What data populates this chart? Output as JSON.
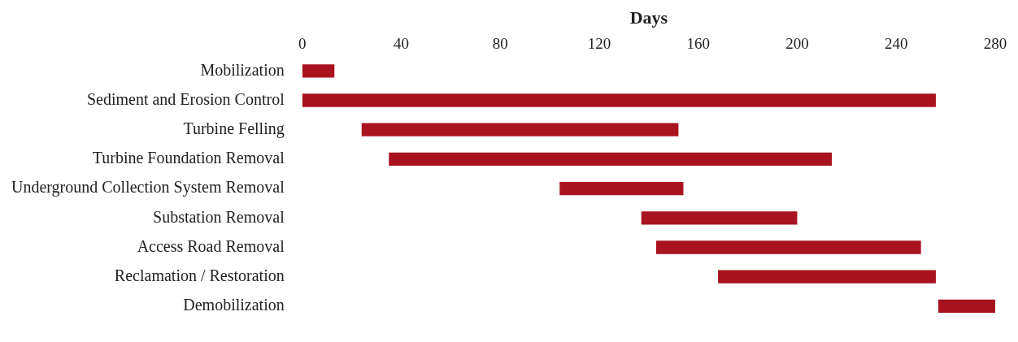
{
  "chart_data": {
    "type": "bar",
    "orientation": "horizontal",
    "xlabel": "Days",
    "categories": [
      "Mobilization",
      "Sediment and Erosion Control",
      "Turbine Felling",
      "Turbine Foundation Removal",
      "Underground Collection System Removal",
      "Substation Removal",
      "Access Road Removal",
      "Reclamation / Restoration",
      "Demobilization"
    ],
    "base": [
      0,
      0,
      24,
      35,
      104,
      137,
      143,
      168,
      257
    ],
    "values": [
      13,
      256,
      128,
      179,
      50,
      63,
      107,
      88,
      23
    ],
    "color": "#a8131f",
    "xlim": [
      0,
      280
    ],
    "xticks": [
      0,
      40,
      80,
      120,
      160,
      200,
      240,
      280
    ],
    "grid": false,
    "legend": false
  }
}
